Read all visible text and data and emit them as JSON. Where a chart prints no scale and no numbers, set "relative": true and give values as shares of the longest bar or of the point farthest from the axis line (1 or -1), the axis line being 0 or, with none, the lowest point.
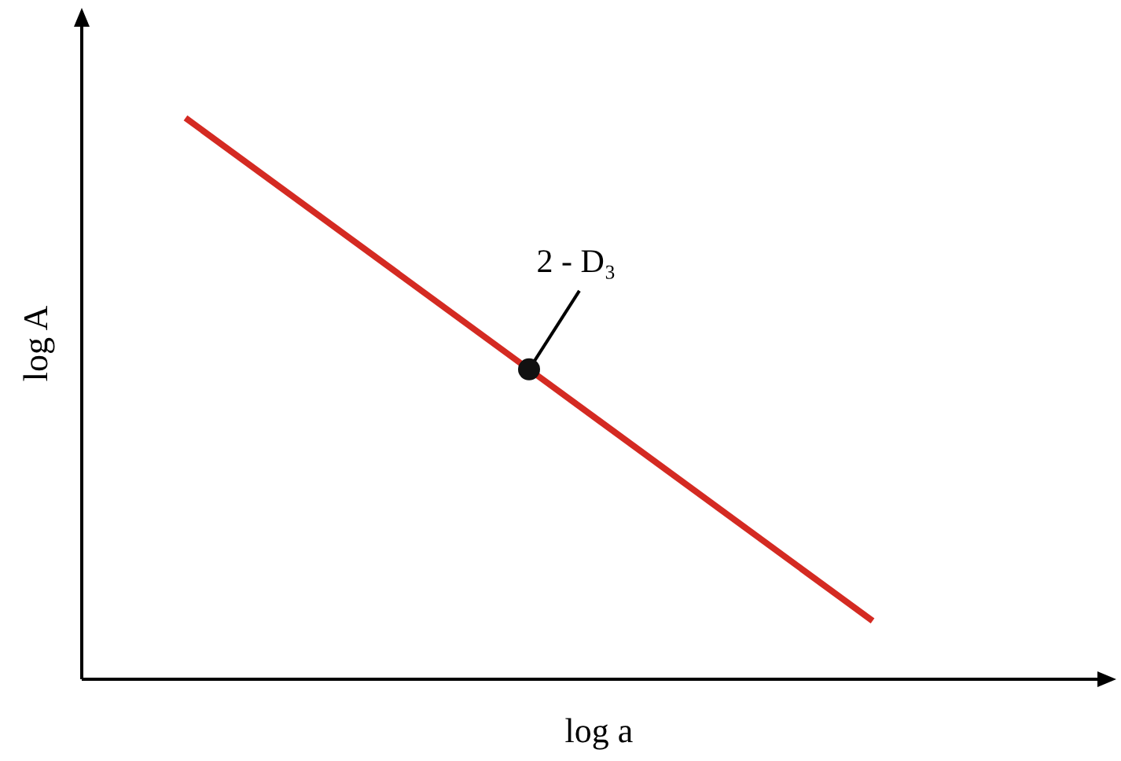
{
  "chart_data": {
    "type": "line",
    "relative": true,
    "xlabel": "log a",
    "ylabel": "log A",
    "categories": [
      null,
      null,
      null
    ],
    "series": [
      {
        "color": "#d42a22",
        "values": [
          1,
          0.552,
          0.104
        ]
      }
    ],
    "annotations": [
      "2 - D₃"
    ]
  }
}
